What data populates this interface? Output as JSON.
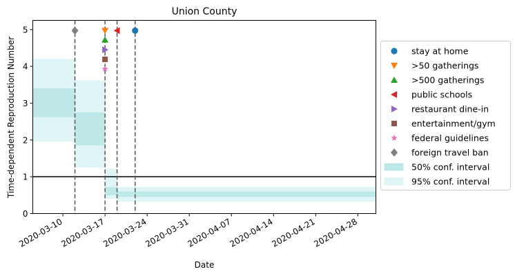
{
  "chart_data": {
    "type": "step-area",
    "title": "Union County",
    "xlabel": "Date",
    "ylabel": "Time-dependent Reproduction Number",
    "xlim": [
      "2020-03-05",
      "2020-05-01"
    ],
    "ylim": [
      0,
      5.25
    ],
    "x_ticks": [
      "2020-03-10",
      "2020-03-17",
      "2020-03-24",
      "2020-03-31",
      "2020-04-07",
      "2020-04-14",
      "2020-04-21",
      "2020-04-28"
    ],
    "y_ticks": [
      0,
      1,
      2,
      3,
      4,
      5
    ],
    "reference_line": 1,
    "band_segments": [
      {
        "start": "2020-03-05",
        "end": "2020-03-12",
        "ci50": [
          2.62,
          3.4
        ],
        "ci95": [
          1.95,
          4.2
        ]
      },
      {
        "start": "2020-03-12",
        "end": "2020-03-17",
        "ci50": [
          1.85,
          2.75
        ],
        "ci95": [
          1.25,
          3.62
        ]
      },
      {
        "start": "2020-03-17",
        "end": "2020-03-19",
        "ci50": [
          0.5,
          0.72
        ],
        "ci95": [
          0.4,
          1.22
        ]
      },
      {
        "start": "2020-03-19",
        "end": "2020-05-01",
        "ci50": [
          0.45,
          0.6
        ],
        "ci95": [
          0.32,
          0.72
        ]
      }
    ],
    "interventions": [
      {
        "name": "stay at home",
        "date": "2020-03-22",
        "y": 4.97,
        "marker": "circle",
        "color": "#1f77b4"
      },
      {
        "name": ">50 gatherings",
        "date": "2020-03-17",
        "y": 4.97,
        "marker": "triangle-down",
        "color": "#ff7f0e"
      },
      {
        "name": ">500 gatherings",
        "date": "2020-03-17",
        "y": 4.72,
        "marker": "triangle-up",
        "color": "#2ca02c"
      },
      {
        "name": "public schools",
        "date": "2020-03-19",
        "y": 4.97,
        "marker": "triangle-left",
        "color": "#d62728"
      },
      {
        "name": "restaurant dine-in",
        "date": "2020-03-17",
        "y": 4.45,
        "marker": "triangle-right",
        "color": "#9467bd"
      },
      {
        "name": "entertainment/gym",
        "date": "2020-03-17",
        "y": 4.19,
        "marker": "square",
        "color": "#8c564b"
      },
      {
        "name": "federal guidelines",
        "date": "2020-03-17",
        "y": 3.93,
        "marker": "star",
        "color": "#e377c2"
      },
      {
        "name": "foreign travel ban",
        "date": "2020-03-12",
        "y": 4.97,
        "marker": "diamond",
        "color": "#7f7f7f"
      }
    ],
    "vlines": [
      "2020-03-12",
      "2020-03-17",
      "2020-03-19",
      "2020-03-22"
    ],
    "legend": {
      "placement": "right-outside",
      "ci50_label": "50% conf. interval",
      "ci95_label": "95% conf. interval"
    },
    "colors": {
      "ci50": "#bfe8e8",
      "ci95": "#e0f6f6",
      "reference": "#000000",
      "vline": "#555555"
    },
    "grid": false
  }
}
